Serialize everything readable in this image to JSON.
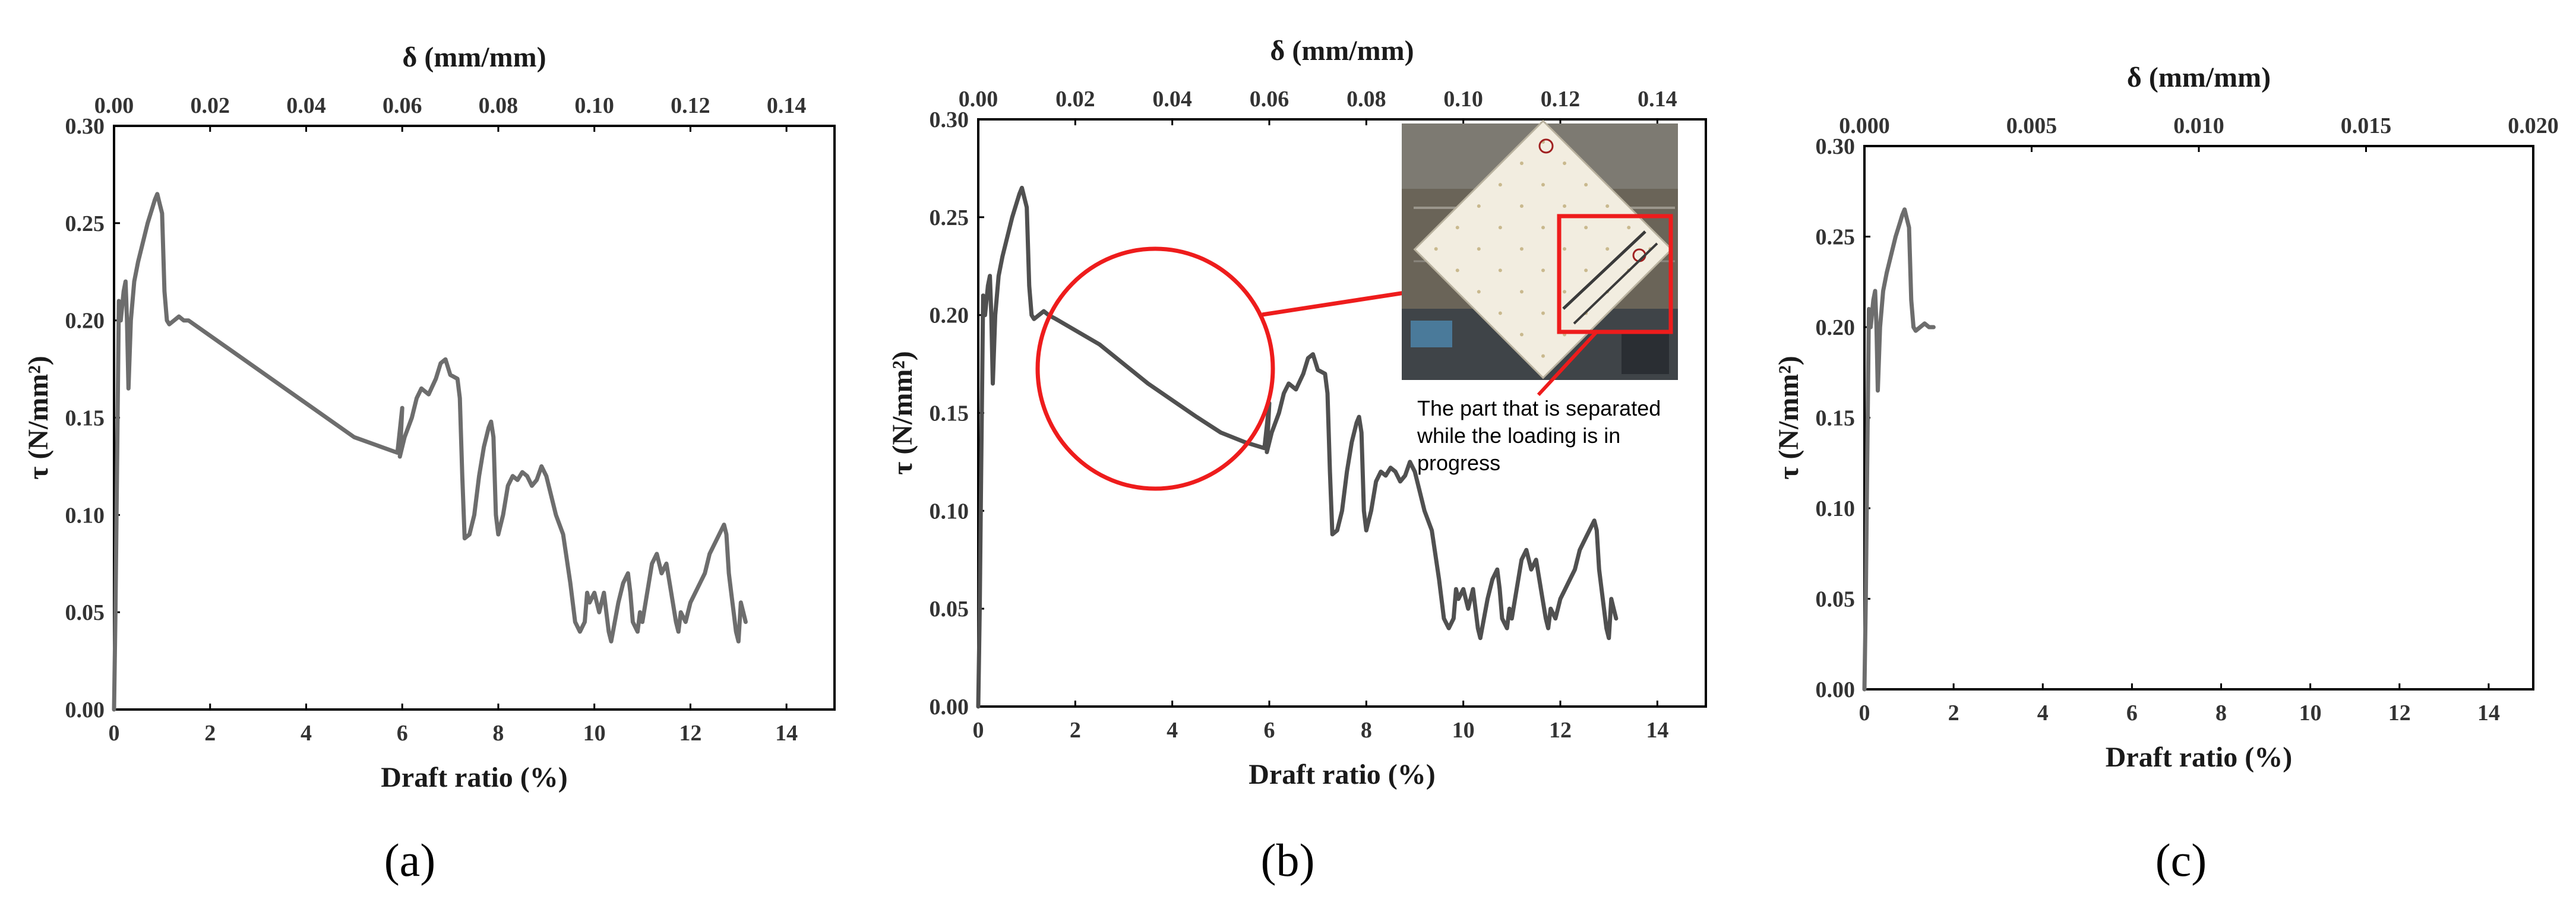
{
  "colors": {
    "curve": "#6d6d6d",
    "curve_dark": "#505050",
    "frame": "#000000",
    "highlight": "#ee1c1c"
  },
  "chart_data": [
    {
      "type": "line",
      "panel_label": "(a)",
      "xlabel": "Draft ratio (%)",
      "x2label": "δ (mm/mm)",
      "ylabel": "τ (N/mm²)",
      "xlim": [
        0,
        15
      ],
      "ylim": [
        0,
        0.3
      ],
      "x2lim": [
        0,
        0.15
      ],
      "x_ticks": [
        "0",
        "2",
        "4",
        "6",
        "8",
        "10",
        "12",
        "14"
      ],
      "x_tick_values": [
        0,
        2,
        4,
        6,
        8,
        10,
        12,
        14
      ],
      "x2_ticks": [
        "0.00",
        "0.02",
        "0.04",
        "0.06",
        "0.08",
        "0.10",
        "0.12",
        "0.14"
      ],
      "x2_tick_values": [
        0,
        0.02,
        0.04,
        0.06,
        0.08,
        0.1,
        0.12,
        0.14
      ],
      "y_ticks": [
        "0.00",
        "0.05",
        "0.10",
        "0.15",
        "0.20",
        "0.25",
        "0.30"
      ],
      "y_tick_values": [
        0,
        0.05,
        0.1,
        0.15,
        0.2,
        0.25,
        0.3
      ],
      "series": [
        {
          "x": [
            0,
            0.03,
            0.06,
            0.1,
            0.14,
            0.2,
            0.24,
            0.27,
            0.3,
            0.35,
            0.42,
            0.5,
            0.6,
            0.7,
            0.8,
            0.85,
            0.9,
            0.95,
            1.0,
            1.05,
            1.1,
            1.15,
            1.25,
            1.35,
            1.45,
            1.55,
            5.0,
            5.9,
            6.0,
            5.95,
            6.05,
            6.2,
            6.3,
            6.4,
            6.55,
            6.7,
            6.8,
            6.9,
            7.0,
            7.15,
            7.2,
            7.25,
            7.3,
            7.4,
            7.5,
            7.6,
            7.7,
            7.8,
            7.85,
            7.9,
            7.95,
            8.0,
            8.1,
            8.2,
            8.3,
            8.4,
            8.5,
            8.6,
            8.7,
            8.8,
            8.9,
            9.0,
            9.1,
            9.2,
            9.35,
            9.5,
            9.6,
            9.7,
            9.8,
            9.85,
            9.9,
            10.0,
            10.1,
            10.2,
            10.3,
            10.35,
            10.5,
            10.6,
            10.7,
            10.75,
            10.8,
            10.9,
            10.95,
            11.0,
            11.1,
            11.2,
            11.3,
            11.4,
            11.5,
            11.6,
            11.7,
            11.75,
            11.8,
            11.9,
            12.0,
            12.1,
            12.2,
            12.3,
            12.4,
            12.5,
            12.6,
            12.7,
            12.75,
            12.8,
            12.85,
            12.9,
            12.95,
            13.0,
            13.05,
            13.1,
            13.15
          ],
          "y": [
            0.0,
            0.05,
            0.12,
            0.21,
            0.2,
            0.215,
            0.22,
            0.2,
            0.165,
            0.2,
            0.22,
            0.23,
            0.24,
            0.25,
            0.258,
            0.262,
            0.265,
            0.26,
            0.255,
            0.215,
            0.2,
            0.198,
            0.2,
            0.202,
            0.2,
            0.2,
            0.14,
            0.132,
            0.155,
            0.13,
            0.14,
            0.15,
            0.16,
            0.165,
            0.162,
            0.17,
            0.178,
            0.18,
            0.172,
            0.17,
            0.16,
            0.12,
            0.088,
            0.09,
            0.1,
            0.12,
            0.135,
            0.145,
            0.148,
            0.14,
            0.1,
            0.09,
            0.1,
            0.115,
            0.12,
            0.118,
            0.122,
            0.12,
            0.115,
            0.118,
            0.125,
            0.12,
            0.11,
            0.1,
            0.09,
            0.065,
            0.045,
            0.04,
            0.045,
            0.06,
            0.055,
            0.06,
            0.05,
            0.06,
            0.04,
            0.035,
            0.055,
            0.065,
            0.07,
            0.06,
            0.045,
            0.04,
            0.05,
            0.045,
            0.06,
            0.075,
            0.08,
            0.07,
            0.075,
            0.06,
            0.045,
            0.04,
            0.05,
            0.045,
            0.055,
            0.06,
            0.065,
            0.07,
            0.08,
            0.085,
            0.09,
            0.095,
            0.09,
            0.07,
            0.06,
            0.05,
            0.04,
            0.035,
            0.055,
            0.05,
            0.045
          ]
        }
      ]
    },
    {
      "type": "line",
      "panel_label": "(b)",
      "xlabel": "Draft ratio (%)",
      "x2label": "δ (mm/mm)",
      "ylabel": "τ (N/mm²)",
      "xlim": [
        0,
        15
      ],
      "ylim": [
        0,
        0.3
      ],
      "x2lim": [
        0,
        0.15
      ],
      "x_ticks": [
        "0",
        "2",
        "4",
        "6",
        "8",
        "10",
        "12",
        "14"
      ],
      "x_tick_values": [
        0,
        2,
        4,
        6,
        8,
        10,
        12,
        14
      ],
      "x2_ticks": [
        "0.00",
        "0.02",
        "0.04",
        "0.06",
        "0.08",
        "0.10",
        "0.12",
        "0.14"
      ],
      "x2_tick_values": [
        0,
        0.02,
        0.04,
        0.06,
        0.08,
        0.1,
        0.12,
        0.14
      ],
      "y_ticks": [
        "0.00",
        "0.05",
        "0.10",
        "0.15",
        "0.20",
        "0.25",
        "0.30"
      ],
      "y_tick_values": [
        0,
        0.05,
        0.1,
        0.15,
        0.2,
        0.25,
        0.3
      ],
      "annotation": {
        "lines": [
          "The part that is separated",
          "while the loading is in",
          "progress"
        ]
      },
      "series": [
        {
          "x": [
            0,
            0.03,
            0.06,
            0.1,
            0.14,
            0.2,
            0.24,
            0.27,
            0.3,
            0.35,
            0.42,
            0.5,
            0.6,
            0.7,
            0.8,
            0.85,
            0.9,
            0.95,
            1.0,
            1.05,
            1.1,
            1.15,
            1.25,
            1.35,
            1.45,
            1.6,
            2.5,
            3.5,
            4.5,
            5.0,
            5.5,
            5.9,
            6.0,
            5.95,
            6.05,
            6.2,
            6.3,
            6.4,
            6.55,
            6.7,
            6.8,
            6.9,
            7.0,
            7.15,
            7.2,
            7.25,
            7.3,
            7.4,
            7.5,
            7.6,
            7.7,
            7.8,
            7.85,
            7.9,
            7.95,
            8.0,
            8.1,
            8.2,
            8.3,
            8.4,
            8.5,
            8.6,
            8.7,
            8.8,
            8.9,
            9.0,
            9.1,
            9.2,
            9.35,
            9.5,
            9.6,
            9.7,
            9.8,
            9.85,
            9.9,
            10.0,
            10.1,
            10.2,
            10.3,
            10.35,
            10.5,
            10.6,
            10.7,
            10.75,
            10.8,
            10.9,
            10.95,
            11.0,
            11.1,
            11.2,
            11.3,
            11.4,
            11.5,
            11.6,
            11.7,
            11.75,
            11.8,
            11.9,
            12.0,
            12.1,
            12.2,
            12.3,
            12.4,
            12.5,
            12.6,
            12.7,
            12.75,
            12.8,
            12.85,
            12.9,
            12.95,
            13.0,
            13.05,
            13.1,
            13.15
          ],
          "y": [
            0.0,
            0.05,
            0.12,
            0.21,
            0.2,
            0.215,
            0.22,
            0.2,
            0.165,
            0.2,
            0.22,
            0.23,
            0.24,
            0.25,
            0.258,
            0.262,
            0.265,
            0.26,
            0.255,
            0.215,
            0.2,
            0.198,
            0.2,
            0.202,
            0.2,
            0.198,
            0.185,
            0.165,
            0.148,
            0.14,
            0.135,
            0.132,
            0.155,
            0.13,
            0.14,
            0.15,
            0.16,
            0.165,
            0.162,
            0.17,
            0.178,
            0.18,
            0.172,
            0.17,
            0.16,
            0.12,
            0.088,
            0.09,
            0.1,
            0.12,
            0.135,
            0.145,
            0.148,
            0.14,
            0.1,
            0.09,
            0.1,
            0.115,
            0.12,
            0.118,
            0.122,
            0.12,
            0.115,
            0.118,
            0.125,
            0.12,
            0.11,
            0.1,
            0.09,
            0.065,
            0.045,
            0.04,
            0.045,
            0.06,
            0.055,
            0.06,
            0.05,
            0.06,
            0.04,
            0.035,
            0.055,
            0.065,
            0.07,
            0.06,
            0.045,
            0.04,
            0.05,
            0.045,
            0.06,
            0.075,
            0.08,
            0.07,
            0.075,
            0.06,
            0.045,
            0.04,
            0.05,
            0.045,
            0.055,
            0.06,
            0.065,
            0.07,
            0.08,
            0.085,
            0.09,
            0.095,
            0.09,
            0.07,
            0.06,
            0.05,
            0.04,
            0.035,
            0.055,
            0.05,
            0.045
          ]
        }
      ]
    },
    {
      "type": "line",
      "panel_label": "(c)",
      "xlabel": "Draft ratio (%)",
      "x2label": "δ (mm/mm)",
      "ylabel": "τ (N/mm²)",
      "xlim": [
        0,
        15
      ],
      "ylim": [
        0,
        0.3
      ],
      "x2lim": [
        0,
        0.02
      ],
      "x_ticks": [
        "0",
        "2",
        "4",
        "6",
        "8",
        "10",
        "12",
        "14"
      ],
      "x_tick_values": [
        0,
        2,
        4,
        6,
        8,
        10,
        12,
        14
      ],
      "x2_ticks": [
        "0.000",
        "0.005",
        "0.010",
        "0.015",
        "0.020"
      ],
      "x2_tick_values": [
        0,
        0.005,
        0.01,
        0.015,
        0.02
      ],
      "y_ticks": [
        "0.00",
        "0.05",
        "0.10",
        "0.15",
        "0.20",
        "0.25",
        "0.30"
      ],
      "y_tick_values": [
        0,
        0.05,
        0.1,
        0.15,
        0.2,
        0.25,
        0.3
      ],
      "series": [
        {
          "x": [
            0,
            0.03,
            0.06,
            0.1,
            0.14,
            0.2,
            0.24,
            0.27,
            0.3,
            0.35,
            0.42,
            0.5,
            0.6,
            0.7,
            0.8,
            0.85,
            0.9,
            0.95,
            1.0,
            1.05,
            1.1,
            1.15,
            1.25,
            1.35,
            1.45,
            1.55
          ],
          "y": [
            0.0,
            0.05,
            0.12,
            0.21,
            0.2,
            0.215,
            0.22,
            0.2,
            0.165,
            0.2,
            0.22,
            0.23,
            0.24,
            0.25,
            0.258,
            0.262,
            0.265,
            0.26,
            0.255,
            0.215,
            0.2,
            0.198,
            0.2,
            0.202,
            0.2,
            0.2
          ]
        }
      ]
    }
  ]
}
